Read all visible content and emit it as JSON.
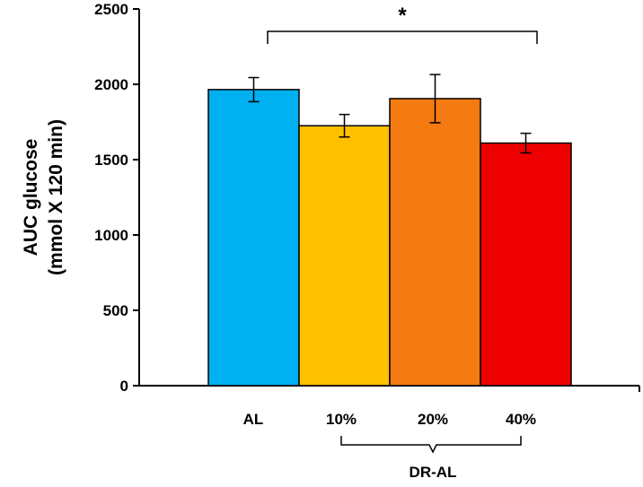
{
  "chart_data": {
    "type": "bar",
    "categories": [
      "AL",
      "10%",
      "20%",
      "40%"
    ],
    "values": [
      1965,
      1725,
      1905,
      1610
    ],
    "errors": [
      80,
      75,
      160,
      65
    ],
    "colors": [
      "#00b0f0",
      "#ffc000",
      "#f47b12",
      "#ee0000"
    ],
    "ylabel_line1": "AUC glucose",
    "ylabel_line2": "(mmol X 120 min)",
    "ylim": [
      0,
      2500
    ],
    "yticks": [
      "0",
      "500",
      "1000",
      "1500",
      "2000",
      "2500"
    ],
    "grid": false,
    "group_label": "DR-AL",
    "group_members": [
      "10%",
      "20%",
      "40%"
    ],
    "significance": {
      "marker": "*",
      "from": "AL",
      "to": "40%"
    }
  }
}
